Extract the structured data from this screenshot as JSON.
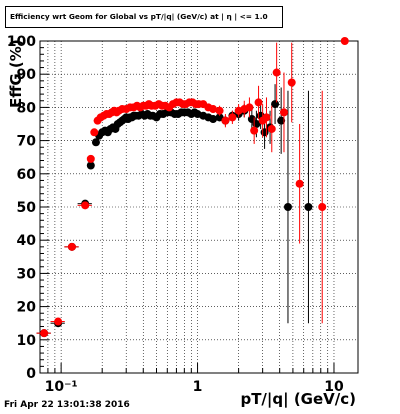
{
  "header": {
    "title": "Efficiency wrt Geom for Global vs pT/|q| (GeV/c) at |  η | <= 1.0"
  },
  "footer": {
    "timestamp": "Fri Apr 22 13:01:38 2016"
  },
  "chart_data": {
    "type": "scatter",
    "title": "Efficiency wrt Geom for Global vs pT/|q| (GeV/c) at |  η | <= 1.0",
    "xlabel": "pT/|q| (GeV/c)",
    "ylabel": "EffG (%)",
    "xscale": "log",
    "xlim": [
      0.07,
      15
    ],
    "ylim": [
      0,
      100
    ],
    "yticks": [
      0,
      10,
      20,
      30,
      40,
      50,
      60,
      70,
      80,
      90,
      100
    ],
    "xtick_labels": [
      {
        "value": 0.1,
        "label": "10⁻¹"
      },
      {
        "value": 1,
        "label": "1"
      },
      {
        "value": 10,
        "label": "10"
      }
    ],
    "grid": true,
    "legend": "none",
    "series": [
      {
        "color": "#000000",
        "x": [
          0.075,
          0.095,
          0.12,
          0.15,
          0.165,
          0.18,
          0.19,
          0.2,
          0.21,
          0.22,
          0.23,
          0.24,
          0.25,
          0.26,
          0.27,
          0.28,
          0.29,
          0.3,
          0.31,
          0.32,
          0.33,
          0.34,
          0.35,
          0.37,
          0.39,
          0.41,
          0.43,
          0.45,
          0.47,
          0.5,
          0.53,
          0.56,
          0.6,
          0.64,
          0.68,
          0.72,
          0.76,
          0.8,
          0.85,
          0.9,
          0.95,
          1.0,
          1.1,
          1.2,
          1.3,
          1.45,
          1.6,
          1.8,
          2.0,
          2.2,
          2.5,
          2.7,
          2.9,
          3.1,
          3.4,
          3.7,
          4.1,
          4.6,
          6.5
        ],
        "y": [
          12,
          15,
          38,
          51,
          62.5,
          69.5,
          71.5,
          72.5,
          73,
          72.5,
          73.5,
          74,
          73.5,
          75,
          75.5,
          76,
          76.5,
          77,
          76.5,
          77,
          77,
          77.5,
          77.5,
          77.5,
          78,
          77.5,
          78,
          77.5,
          77.5,
          77,
          78,
          78,
          78.5,
          78.5,
          78,
          78,
          78.5,
          78.5,
          78.5,
          78,
          78.5,
          78,
          77.5,
          77,
          76.5,
          77,
          76,
          77.5,
          78,
          79,
          76.5,
          75,
          77.5,
          72.5,
          74,
          81,
          76,
          50,
          50
        ],
        "yerr": [
          0.8,
          1.0,
          0.8,
          0.8,
          1.0,
          0.8,
          0.6,
          0.6,
          0.6,
          0.6,
          0.6,
          0.6,
          0.6,
          0.6,
          0.6,
          0.6,
          0.6,
          0.6,
          0.6,
          0.6,
          0.6,
          0.6,
          0.6,
          0.6,
          0.6,
          0.6,
          0.6,
          0.6,
          0.6,
          0.6,
          0.6,
          0.6,
          0.6,
          0.6,
          0.6,
          0.6,
          0.6,
          0.6,
          0.6,
          0.6,
          0.6,
          0.6,
          0.8,
          1.0,
          1.2,
          1.2,
          1.5,
          1.5,
          2,
          2,
          3,
          4,
          4,
          5,
          5,
          6,
          10,
          35,
          35
        ]
      },
      {
        "color": "#ff0000",
        "x": [
          0.075,
          0.095,
          0.12,
          0.15,
          0.165,
          0.175,
          0.185,
          0.195,
          0.205,
          0.215,
          0.225,
          0.235,
          0.245,
          0.255,
          0.265,
          0.28,
          0.3,
          0.32,
          0.34,
          0.36,
          0.38,
          0.4,
          0.42,
          0.44,
          0.46,
          0.49,
          0.52,
          0.55,
          0.58,
          0.62,
          0.66,
          0.7,
          0.74,
          0.78,
          0.82,
          0.87,
          0.92,
          0.97,
          1.02,
          1.1,
          1.2,
          1.3,
          1.45,
          1.6,
          1.8,
          2.0,
          2.2,
          2.4,
          2.6,
          2.8,
          3.0,
          3.2,
          3.5,
          3.8,
          4.3,
          4.9,
          5.6,
          8.2,
          12.0
        ],
        "y": [
          12,
          15.5,
          38,
          50.5,
          64.5,
          72.5,
          76,
          77,
          77.5,
          78,
          78,
          78.5,
          79,
          78.5,
          79,
          79.5,
          79.5,
          80,
          80,
          80.5,
          80,
          80.5,
          80.5,
          81,
          80.5,
          80.5,
          81,
          80.5,
          80.5,
          80,
          81,
          81.5,
          81.5,
          81,
          81,
          81.5,
          81.5,
          81,
          81,
          81,
          80,
          79.5,
          79,
          76,
          77,
          79,
          79.5,
          80,
          73,
          81.5,
          76,
          77,
          73.5,
          90.5,
          78.5,
          87.5,
          57,
          50,
          100
        ],
        "yerr": [
          0.8,
          1.0,
          0.8,
          0.8,
          1.0,
          0.8,
          0.6,
          0.6,
          0.6,
          0.6,
          0.6,
          0.6,
          0.6,
          0.6,
          0.6,
          0.6,
          0.6,
          0.6,
          0.6,
          0.6,
          0.6,
          0.6,
          0.6,
          0.6,
          0.6,
          0.6,
          0.6,
          0.6,
          0.6,
          0.6,
          0.6,
          0.6,
          0.6,
          0.6,
          0.6,
          0.6,
          0.6,
          0.6,
          0.6,
          0.8,
          1.0,
          1.2,
          1.5,
          2,
          2,
          2,
          2.5,
          3,
          4,
          5,
          5,
          6,
          7,
          9,
          12,
          12,
          18,
          35,
          1
        ]
      }
    ]
  }
}
